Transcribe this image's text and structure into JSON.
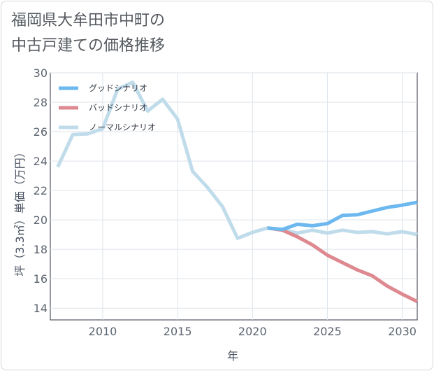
{
  "chart_data": {
    "type": "line",
    "title_lines": [
      "福岡県大牟田市中町の",
      "中古戸建ての価格推移"
    ],
    "xlabel": "年",
    "ylabel": "坪（3.3㎡）単価（万円）",
    "xlim": [
      2006.5,
      2031
    ],
    "ylim": [
      13.2,
      30
    ],
    "xticks": [
      2010,
      2015,
      2020,
      2025,
      2030
    ],
    "xtick_labels": [
      "2010",
      "2015",
      "2020",
      "2025",
      "2030"
    ],
    "yticks": [
      14,
      16,
      18,
      20,
      22,
      24,
      26,
      28,
      30
    ],
    "ytick_labels": [
      "14",
      "16",
      "18",
      "20",
      "22",
      "24",
      "26",
      "28",
      "30"
    ],
    "grid": true,
    "legend_position": "top-left",
    "series": [
      {
        "name": "グッドシナリオ",
        "color": "#6cb8ef",
        "x": [
          2021,
          2022,
          2023,
          2024,
          2025,
          2026,
          2027,
          2028,
          2029,
          2030,
          2031
        ],
        "y": [
          19.45,
          19.35,
          19.7,
          19.6,
          19.75,
          20.3,
          20.35,
          20.6,
          20.85,
          21.0,
          21.2
        ]
      },
      {
        "name": "バッドシナリオ",
        "color": "#de8890",
        "x": [
          2021,
          2022,
          2023,
          2024,
          2025,
          2026,
          2027,
          2028,
          2029,
          2030,
          2031
        ],
        "y": [
          19.45,
          19.3,
          18.85,
          18.3,
          17.6,
          17.1,
          16.6,
          16.2,
          15.5,
          14.95,
          14.45
        ]
      },
      {
        "name": "ノーマルシナリオ",
        "color": "#c0dceb",
        "x": [
          2007,
          2008,
          2009,
          2010,
          2011,
          2012,
          2013,
          2014,
          2015,
          2016,
          2017,
          2018,
          2019,
          2020,
          2021,
          2022,
          2023,
          2024,
          2025,
          2026,
          2027,
          2028,
          2029,
          2030,
          2031
        ],
        "y": [
          23.6,
          25.8,
          25.85,
          26.2,
          28.9,
          29.35,
          27.4,
          28.2,
          26.85,
          23.3,
          22.2,
          20.9,
          18.75,
          19.15,
          19.45,
          19.35,
          19.1,
          19.3,
          19.1,
          19.3,
          19.15,
          19.2,
          19.05,
          19.2,
          19.0
        ]
      }
    ]
  }
}
